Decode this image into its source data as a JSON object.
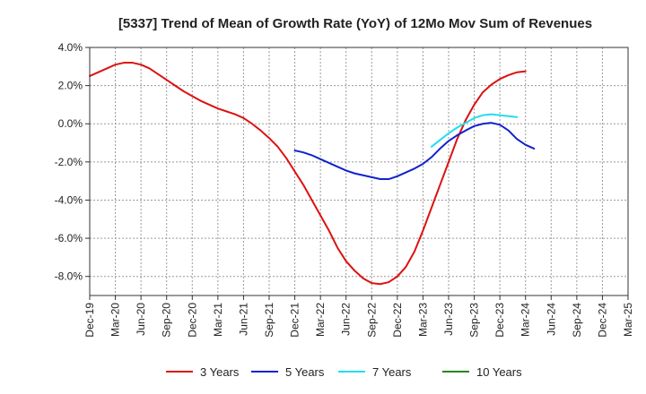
{
  "chart_data": {
    "type": "line",
    "title": "[5337]  Trend of Mean of Growth Rate (YoY) of 12Mo Mov Sum of Revenues",
    "xlabel": "",
    "ylabel": "",
    "ylim": [
      -9.0,
      4.0
    ],
    "y_ticks": [
      4.0,
      2.0,
      0.0,
      -2.0,
      -4.0,
      -6.0,
      -8.0
    ],
    "y_tick_labels": [
      "4.0%",
      "2.0%",
      "0.0%",
      "-2.0%",
      "-4.0%",
      "-6.0%",
      "-8.0%"
    ],
    "x_tick_labels": [
      "Dec-19",
      "Mar-20",
      "Jun-20",
      "Sep-20",
      "Dec-20",
      "Mar-21",
      "Jun-21",
      "Sep-21",
      "Dec-21",
      "Mar-22",
      "Jun-22",
      "Sep-22",
      "Dec-22",
      "Mar-23",
      "Jun-23",
      "Sep-23",
      "Dec-23",
      "Mar-24",
      "Jun-24",
      "Sep-24",
      "Dec-24",
      "Mar-25"
    ],
    "grid": true,
    "legend_position": "bottom",
    "series": [
      {
        "name": "3 Years",
        "color": "#dd1111",
        "start_index": 0,
        "values": [
          2.5,
          2.7,
          2.9,
          3.1,
          3.2,
          3.2,
          3.1,
          2.9,
          2.6,
          2.3,
          2.0,
          1.7,
          1.45,
          1.2,
          1.0,
          0.8,
          0.65,
          0.5,
          0.3,
          0.0,
          -0.35,
          -0.75,
          -1.2,
          -1.8,
          -2.5,
          -3.2,
          -4.0,
          -4.8,
          -5.6,
          -6.5,
          -7.2,
          -7.7,
          -8.1,
          -8.35,
          -8.4,
          -8.3,
          -8.0,
          -7.5,
          -6.7,
          -5.6,
          -4.4,
          -3.2,
          -2.0,
          -0.8,
          0.2,
          1.0,
          1.65,
          2.05,
          2.35,
          2.55,
          2.7,
          2.75
        ]
      },
      {
        "name": "5 Years",
        "color": "#1122cc",
        "start_index": 24,
        "values": [
          -1.4,
          -1.5,
          -1.65,
          -1.85,
          -2.05,
          -2.25,
          -2.45,
          -2.6,
          -2.7,
          -2.8,
          -2.9,
          -2.9,
          -2.75,
          -2.55,
          -2.35,
          -2.1,
          -1.75,
          -1.3,
          -0.9,
          -0.6,
          -0.35,
          -0.12,
          0.0,
          0.05,
          -0.05,
          -0.35,
          -0.8,
          -1.1,
          -1.3
        ]
      },
      {
        "name": "7 Years",
        "color": "#22ddee",
        "start_index": 40,
        "values": [
          -1.2,
          -0.85,
          -0.5,
          -0.2,
          0.05,
          0.3,
          0.45,
          0.5,
          0.45,
          0.4,
          0.35
        ]
      },
      {
        "name": "10 Years",
        "color": "#228822",
        "start_index": 0,
        "values": []
      }
    ]
  }
}
